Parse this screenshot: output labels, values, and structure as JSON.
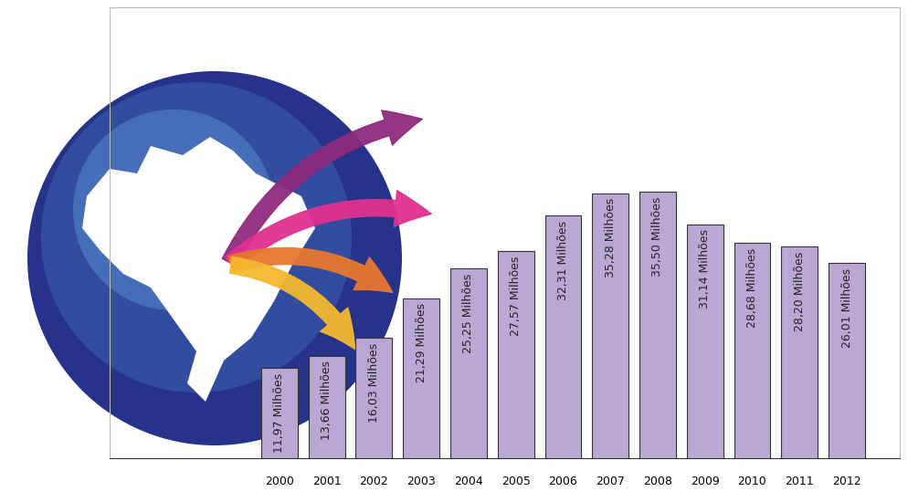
{
  "chart_data": {
    "type": "bar",
    "categories": [
      "2000",
      "2001",
      "2002",
      "2003",
      "2004",
      "2005",
      "2006",
      "2007",
      "2008",
      "2009",
      "2010",
      "2011",
      "2012"
    ],
    "values": [
      11.97,
      13.66,
      16.03,
      21.29,
      25.25,
      27.57,
      32.31,
      35.28,
      35.5,
      31.14,
      28.68,
      28.2,
      26.01
    ],
    "value_labels": [
      "11,97 Milhões",
      "13,66 Milhões",
      "16,03 Milhões",
      "21,29 Milhões",
      "25,25 Milhões",
      "27,57 Milhões",
      "32,31 Milhões",
      "35,28 Milhões",
      "35,50 Milhões",
      "31,14 Milhões",
      "28,68 Milhões",
      "28,20 Milhões",
      "26,01 Milhões"
    ],
    "color": "#b9a8d4",
    "ylim": [
      0,
      60
    ],
    "data_labels": true,
    "tick_labels": "x"
  }
}
